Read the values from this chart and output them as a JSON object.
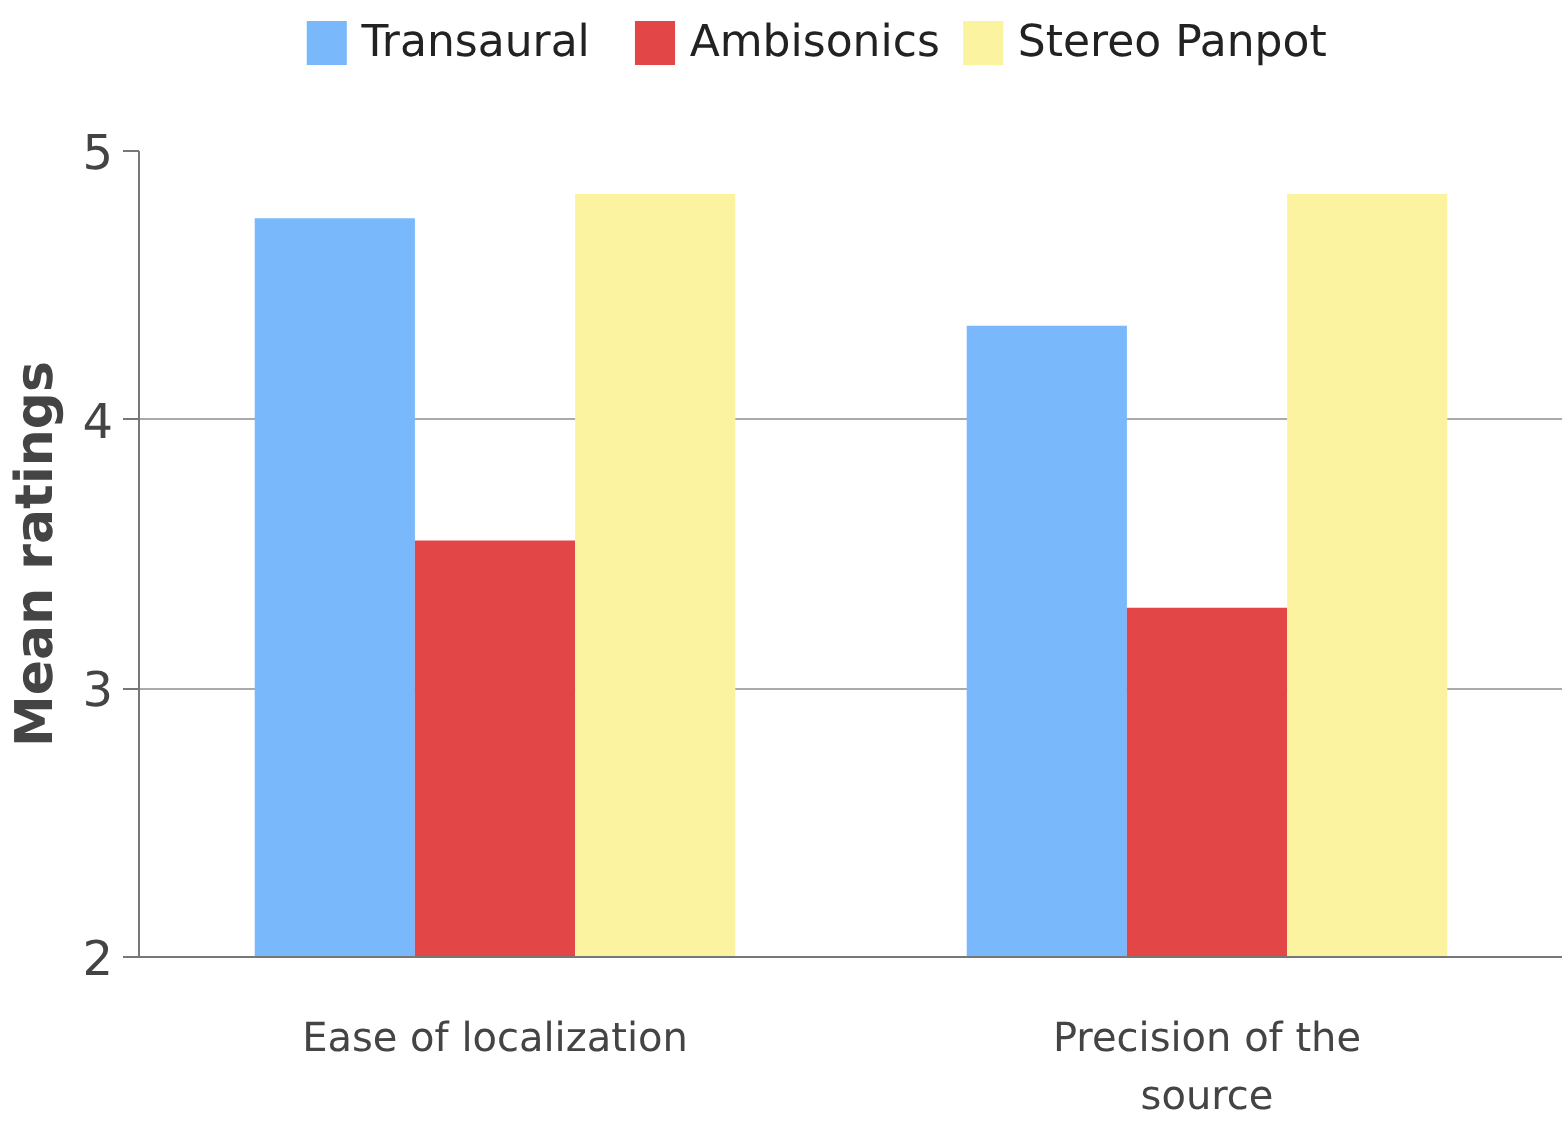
{
  "chart_data": {
    "type": "bar",
    "ylabel": "Mean ratings",
    "categories": [
      "Ease of localization",
      "Precision of the source"
    ],
    "series": [
      {
        "name": "Transaural",
        "color": "#7ab8fc",
        "values": [
          4.75,
          4.35
        ]
      },
      {
        "name": "Ambisonics",
        "color": "#e24646",
        "values": [
          3.55,
          3.3
        ]
      },
      {
        "name": "Stereo Panpot",
        "color": "#fbf3a0",
        "values": [
          4.84,
          4.84
        ]
      }
    ],
    "ylim": [
      2,
      5
    ],
    "yticks": [
      2,
      3,
      4,
      5
    ],
    "grid": "y",
    "legend": "top"
  }
}
